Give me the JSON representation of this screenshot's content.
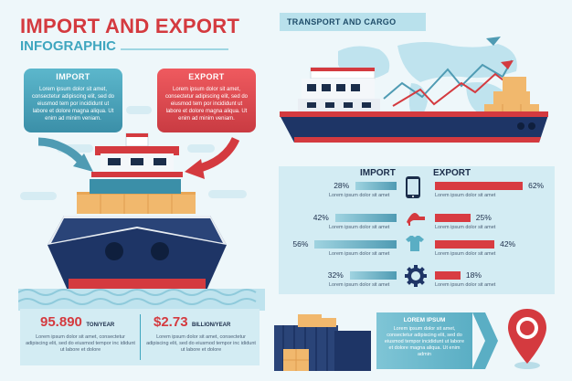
{
  "header": {
    "title": "IMPORT AND EXPORT",
    "subtitle": "INFOGRAPHIC"
  },
  "import_box": {
    "title": "IMPORT",
    "text": "Lorem ipsum dolor sit amet, consectetur adipiscing elit, sed do eiusmod tem por incididunt ut labore et dolore magna aliqua. Ut enim ad minim veniam."
  },
  "export_box": {
    "title": "EXPORT",
    "text": "Lorem ipsum dolor sit amet, consectetur adipiscing elit, sed do eiusmod tem por incididunt ut labore et dolore magna aliqua. Ut enim ad minim veniam."
  },
  "transport": {
    "title": "TRANSPORT AND CARGO"
  },
  "stats": {
    "import_header": "IMPORT",
    "export_header": "EXPORT",
    "rows": [
      {
        "icon": "phone-icon",
        "import_pct": "28%",
        "import_value": 28,
        "export_pct": "62%",
        "export_value": 62,
        "import_label": "Lorem ipsum dolor sit amet",
        "export_label": "Lorem ipsum dolor sit amet"
      },
      {
        "icon": "high-heel-icon",
        "import_pct": "42%",
        "import_value": 42,
        "export_pct": "25%",
        "export_value": 25,
        "import_label": "Lorem ipsum dolor sit amet",
        "export_label": "Lorem ipsum dolor sit amet"
      },
      {
        "icon": "tshirt-icon",
        "import_pct": "56%",
        "import_value": 56,
        "export_pct": "42%",
        "export_value": 42,
        "import_label": "Lorem ipsum dolor sit amet",
        "export_label": "Lorem ipsum dolor sit amet"
      },
      {
        "icon": "gear-icon",
        "import_pct": "32%",
        "import_value": 32,
        "export_pct": "18%",
        "export_value": 18,
        "import_label": "Lorem ipsum dolor sit amet",
        "export_label": "Lorem ipsum dolor sit amet"
      }
    ]
  },
  "bottom_stats": {
    "left": {
      "value": "95.890",
      "unit": "TON/YEAR",
      "text": "Lorem ipsum dolor sit amet, consectetur adipiscing elit, sed do eiusmod tempor inc ididunt ut labore et dolore"
    },
    "right": {
      "value": "$2.73",
      "unit": "BILLION/YEAR",
      "text": "Lorem ipsum dolor sit amet, consectetur adipiscing elit, sed do eiusmod tempor inc ididunt ut labore et dolore"
    }
  },
  "lorem_panel": {
    "title": "LOREM IPSUM",
    "text": "Lorem ipsum dolor sit amet, consectetur adipiscing elit, sed do eiusmod tempor incididunt ut labore et dolore magna aliqua. Ut enim admin"
  },
  "colors": {
    "red": "#d43a3f",
    "teal": "#3fa6bf",
    "navy": "#1b2d4a",
    "panel": "#d3ecf3"
  }
}
